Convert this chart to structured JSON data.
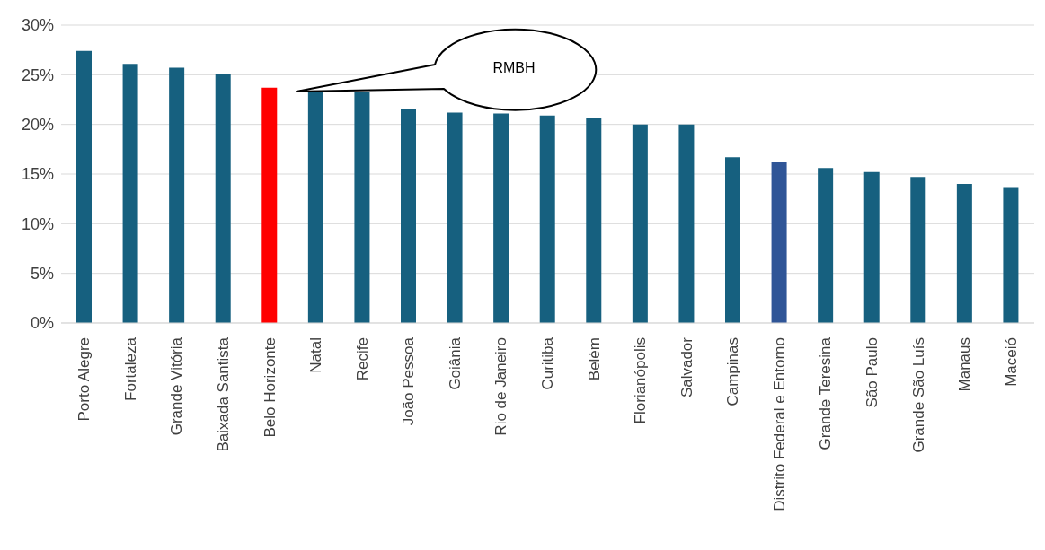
{
  "chart_data": {
    "type": "bar",
    "categories": [
      "Porto Alegre",
      "Fortaleza",
      "Grande Vitória",
      "Baixada Santista",
      "Belo Horizonte",
      "Natal",
      "Recife",
      "João Pessoa",
      "Goiânia",
      "Rio de Janeiro",
      "Curitiba",
      "Belém",
      "Florianópolis",
      "Salvador",
      "Campinas",
      "Distrito Federal e Entorno",
      "Grande Teresina",
      "São Paulo",
      "Grande São Luís",
      "Manaus",
      "Maceió"
    ],
    "values": [
      27.4,
      26.1,
      25.7,
      25.1,
      23.7,
      23.3,
      23.3,
      21.6,
      21.2,
      21.1,
      20.9,
      20.7,
      20.0,
      20.0,
      16.7,
      16.2,
      15.6,
      15.2,
      14.7,
      14.0,
      13.7
    ],
    "colors": [
      "#16607f",
      "#16607f",
      "#16607f",
      "#16607f",
      "#ff0000",
      "#16607f",
      "#16607f",
      "#16607f",
      "#16607f",
      "#16607f",
      "#16607f",
      "#16607f",
      "#16607f",
      "#16607f",
      "#16607f",
      "#2f5597",
      "#16607f",
      "#16607f",
      "#16607f",
      "#16607f",
      "#16607f"
    ],
    "ylim": [
      0,
      30
    ],
    "yticks": [
      {
        "value": 0,
        "label": "0%"
      },
      {
        "value": 5,
        "label": "5%"
      },
      {
        "value": 10,
        "label": "10%"
      },
      {
        "value": 15,
        "label": "15%"
      },
      {
        "value": 20,
        "label": "20%"
      },
      {
        "value": 25,
        "label": "25%"
      },
      {
        "value": 30,
        "label": "30%"
      }
    ],
    "grid": "y",
    "annotations": [
      "RMBH"
    ]
  }
}
